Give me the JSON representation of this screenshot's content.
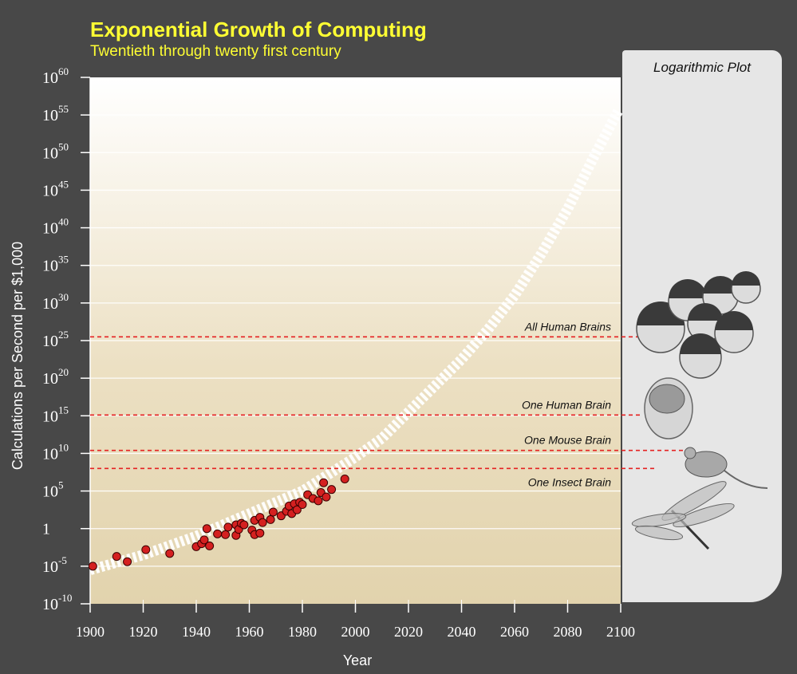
{
  "title": "Exponential Growth of Computing",
  "subtitle": "Twentieth through twenty first century",
  "panel": {
    "title": "Logarithmic Plot"
  },
  "colors": {
    "background": "#484848",
    "title": "#ffff33",
    "points": "#d42020",
    "thresholds": "#e52222",
    "panel": "#e6e6e6"
  },
  "icons": [
    "human-faces-icon",
    "brain-head-icon",
    "mouse-icon",
    "dragonfly-icon"
  ],
  "chart_data": {
    "type": "scatter",
    "title": "Exponential Growth of Computing",
    "subtitle": "Twentieth through twenty first century",
    "xlabel": "Year",
    "ylabel": "Calculations per Second per $1,000",
    "xlim": [
      1900,
      2100
    ],
    "ylim_log10": [
      -10,
      60
    ],
    "y_scale": "log",
    "grid": true,
    "x_ticks": [
      "1900",
      "1920",
      "1940",
      "1960",
      "1980",
      "2000",
      "2020",
      "2040",
      "2060",
      "2080",
      "2100"
    ],
    "y_ticks": [
      {
        "base": "10",
        "exp": "-10"
      },
      {
        "base": "10",
        "exp": "-5"
      },
      {
        "base": "1",
        "exp": ""
      },
      {
        "base": "10",
        "exp": "5"
      },
      {
        "base": "10",
        "exp": "10"
      },
      {
        "base": "10",
        "exp": "15"
      },
      {
        "base": "10",
        "exp": "20"
      },
      {
        "base": "10",
        "exp": "25"
      },
      {
        "base": "10",
        "exp": "30"
      },
      {
        "base": "10",
        "exp": "35"
      },
      {
        "base": "10",
        "exp": "40"
      },
      {
        "base": "10",
        "exp": "45"
      },
      {
        "base": "10",
        "exp": "50"
      },
      {
        "base": "10",
        "exp": "55"
      },
      {
        "base": "10",
        "exp": "60"
      }
    ],
    "trend_curve": {
      "x": [
        1900,
        1920,
        1940,
        1960,
        1980,
        2000,
        2010,
        2020,
        2030,
        2040,
        2050,
        2060,
        2070,
        2080,
        2090,
        2099
      ],
      "log10_y": [
        -5.5,
        -3.5,
        -1,
        2,
        5,
        9.5,
        12,
        15.5,
        19,
        22.5,
        26.5,
        31,
        36.5,
        42.5,
        49.5,
        55.5
      ]
    },
    "points": [
      [
        1901,
        -5.0
      ],
      [
        1910,
        -3.7
      ],
      [
        1914,
        -4.4
      ],
      [
        1921,
        -2.8
      ],
      [
        1930,
        -3.3
      ],
      [
        1940,
        -2.4
      ],
      [
        1942,
        -2.0
      ],
      [
        1943,
        -1.5
      ],
      [
        1944,
        0.0
      ],
      [
        1945,
        -2.3
      ],
      [
        1948,
        -0.7
      ],
      [
        1951,
        -0.8
      ],
      [
        1952,
        0.2
      ],
      [
        1955,
        -0.9
      ],
      [
        1955,
        0.5
      ],
      [
        1956,
        -0.1
      ],
      [
        1957,
        0.7
      ],
      [
        1958,
        0.5
      ],
      [
        1961,
        -0.2
      ],
      [
        1962,
        -0.8
      ],
      [
        1962,
        1.1
      ],
      [
        1964,
        -0.6
      ],
      [
        1964,
        1.5
      ],
      [
        1965,
        0.8
      ],
      [
        1968,
        1.2
      ],
      [
        1969,
        2.2
      ],
      [
        1972,
        1.7
      ],
      [
        1974,
        2.3
      ],
      [
        1975,
        3.0
      ],
      [
        1976,
        2.0
      ],
      [
        1977,
        3.3
      ],
      [
        1978,
        2.5
      ],
      [
        1979,
        3.5
      ],
      [
        1980,
        3.2
      ],
      [
        1982,
        4.5
      ],
      [
        1984,
        4.0
      ],
      [
        1986,
        3.7
      ],
      [
        1987,
        4.8
      ],
      [
        1988,
        6.1
      ],
      [
        1989,
        4.2
      ],
      [
        1991,
        5.2
      ],
      [
        1996,
        6.6
      ]
    ],
    "thresholds": [
      {
        "label": "All Human Brains",
        "log10_y": 25.5
      },
      {
        "label": "One Human Brain",
        "log10_y": 15.1
      },
      {
        "label": "One Mouse Brain",
        "log10_y": 10.4
      },
      {
        "label": "One Insect Brain",
        "log10_y": 8.0
      }
    ]
  }
}
